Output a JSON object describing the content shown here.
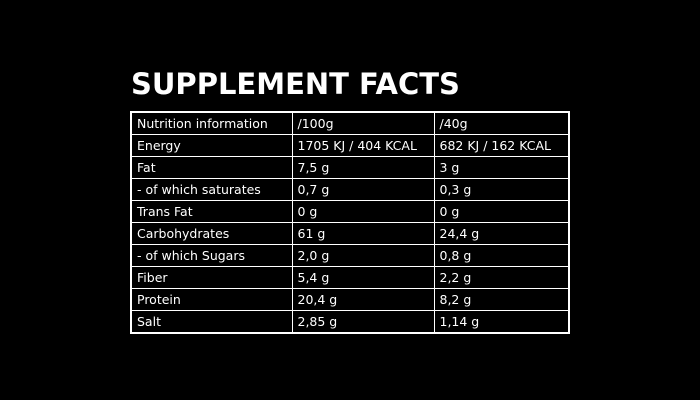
{
  "title": "SUPPLEMENT FACTS",
  "table": {
    "rows": [
      {
        "label": "Nutrition information",
        "per100": "/100g",
        "per40": "/40g"
      },
      {
        "label": "Energy",
        "per100": "1705 KJ / 404 KCAL",
        "per40": "682 KJ / 162 KCAL"
      },
      {
        "label": "Fat",
        "per100": "7,5 g",
        "per40": "3 g"
      },
      {
        "label": "- of which saturates",
        "per100": "0,7 g",
        "per40": "0,3 g"
      },
      {
        "label": "Trans Fat",
        "per100": "0 g",
        "per40": "0 g"
      },
      {
        "label": "Carbohydrates",
        "per100": "61 g",
        "per40": "24,4 g"
      },
      {
        "label": "- of which Sugars",
        "per100": "2,0 g",
        "per40": "0,8 g"
      },
      {
        "label": "Fiber",
        "per100": "5,4 g",
        "per40": "2,2 g"
      },
      {
        "label": "Protein",
        "per100": "20,4 g",
        "per40": "8,2 g"
      },
      {
        "label": "Salt",
        "per100": "2,85 g",
        "per40": "1,14 g"
      }
    ]
  }
}
